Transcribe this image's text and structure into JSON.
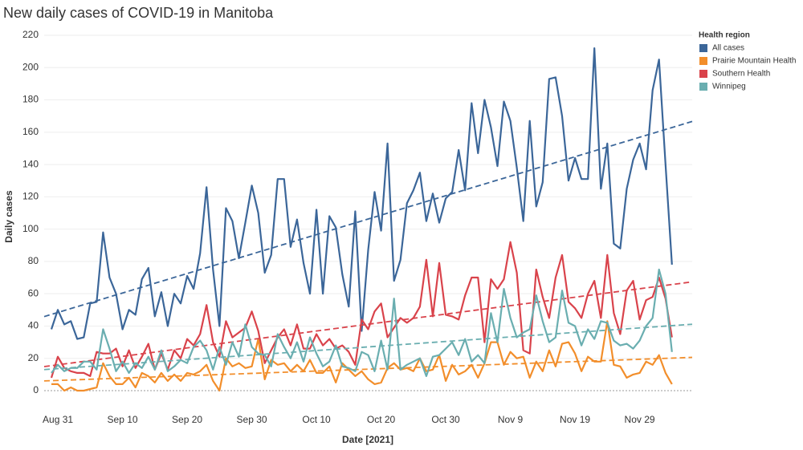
{
  "chart_data": {
    "type": "line",
    "title": "New daily cases of COVID-19 in Manitoba",
    "x_label": "Date [2021]",
    "y_label": "Daily cases",
    "legend_title": "Health region",
    "legend": "right",
    "grid": true,
    "trend_lines": true,
    "categories": [
      null,
      "Aug 31",
      null,
      null,
      null,
      null,
      null,
      null,
      null,
      null,
      null,
      "Sep 10",
      null,
      null,
      null,
      null,
      null,
      null,
      null,
      null,
      null,
      "Sep 20",
      null,
      null,
      null,
      null,
      null,
      null,
      null,
      null,
      null,
      "Sep 30",
      null,
      null,
      null,
      null,
      null,
      null,
      null,
      null,
      null,
      "Oct 10",
      null,
      null,
      null,
      null,
      null,
      null,
      null,
      null,
      null,
      "Oct 20",
      null,
      null,
      null,
      null,
      null,
      null,
      null,
      null,
      null,
      "Oct 30",
      null,
      null,
      null,
      null,
      null,
      null,
      null,
      null,
      null,
      "Nov 9",
      null,
      null,
      null,
      null,
      null,
      null,
      null,
      null,
      null,
      "Nov 19",
      null,
      null,
      null,
      null,
      null,
      null,
      null,
      null,
      null,
      "Nov 29",
      null,
      null,
      null,
      null,
      null
    ],
    "ylim": [
      0,
      220
    ],
    "yticks": [
      0,
      20,
      40,
      60,
      80,
      100,
      120,
      140,
      160,
      180,
      200,
      220
    ],
    "series": [
      {
        "name": "All cases",
        "color": "#3b6699",
        "values": [
          38,
          50,
          41,
          43,
          32,
          33,
          54,
          55,
          98,
          70,
          60,
          38,
          50,
          47,
          69,
          76,
          46,
          61,
          40,
          60,
          54,
          71,
          63,
          85,
          126,
          75,
          40,
          113,
          105,
          82,
          104,
          127,
          110,
          73,
          84,
          131,
          131,
          89,
          106,
          79,
          60,
          112,
          60,
          108,
          101,
          72,
          52,
          111,
          37,
          87,
          123,
          99,
          153,
          68,
          81,
          116,
          124,
          135,
          105,
          122,
          104,
          119,
          123,
          149,
          124,
          178,
          147,
          180,
          163,
          139,
          179,
          167,
          138,
          105,
          167,
          114,
          129,
          193,
          194,
          170,
          130,
          144,
          131,
          131,
          212,
          125,
          153,
          91,
          88,
          125,
          143,
          153,
          137,
          186,
          205,
          140,
          78
        ]
      },
      {
        "name": "Prairie Mountain Health",
        "color": "#f28e2b",
        "values": [
          4,
          4,
          0,
          2,
          0,
          0,
          1,
          2,
          17,
          9,
          4,
          4,
          8,
          2,
          11,
          9,
          5,
          11,
          6,
          10,
          6,
          11,
          10,
          12,
          16,
          6,
          0,
          20,
          15,
          17,
          14,
          15,
          32,
          7,
          19,
          16,
          17,
          12,
          16,
          12,
          19,
          11,
          11,
          15,
          5,
          17,
          13,
          9,
          12,
          7,
          4,
          5,
          14,
          17,
          13,
          14,
          12,
          20,
          12,
          13,
          22,
          6,
          16,
          10,
          12,
          16,
          8,
          17,
          30,
          30,
          16,
          24,
          20,
          21,
          8,
          18,
          12,
          25,
          15,
          29,
          30,
          23,
          12,
          21,
          18,
          18,
          43,
          16,
          15,
          8,
          10,
          11,
          18,
          16,
          22,
          11,
          4
        ]
      },
      {
        "name": "Southern Health",
        "color": "#d9434b",
        "values": [
          8,
          21,
          14,
          12,
          11,
          11,
          9,
          24,
          23,
          23,
          26,
          15,
          25,
          14,
          21,
          29,
          13,
          23,
          13,
          25,
          20,
          32,
          28,
          35,
          53,
          30,
          21,
          43,
          33,
          36,
          39,
          49,
          37,
          17,
          25,
          33,
          38,
          28,
          41,
          26,
          26,
          35,
          28,
          32,
          26,
          28,
          24,
          16,
          44,
          38,
          49,
          54,
          33,
          39,
          45,
          42,
          45,
          52,
          81,
          46,
          79,
          47,
          46,
          44,
          59,
          70,
          70,
          30,
          69,
          63,
          69,
          92,
          73,
          25,
          23,
          75,
          58,
          45,
          70,
          84,
          55,
          51,
          45,
          60,
          68,
          45,
          84,
          48,
          35,
          62,
          68,
          44,
          56,
          58,
          70,
          57,
          33
        ]
      },
      {
        "name": "Winnipeg",
        "color": "#6aaeb0",
        "values": [
          11,
          16,
          12,
          14,
          14,
          18,
          18,
          13,
          38,
          26,
          12,
          18,
          11,
          17,
          14,
          21,
          13,
          25,
          12,
          15,
          19,
          17,
          27,
          31,
          25,
          13,
          27,
          16,
          30,
          21,
          41,
          27,
          23,
          22,
          15,
          35,
          27,
          20,
          30,
          18,
          33,
          23,
          15,
          18,
          28,
          15,
          14,
          12,
          24,
          22,
          12,
          31,
          13,
          57,
          13,
          16,
          18,
          20,
          9,
          21,
          22,
          26,
          30,
          22,
          32,
          18,
          22,
          17,
          48,
          30,
          63,
          45,
          33,
          36,
          38,
          59,
          43,
          30,
          33,
          62,
          42,
          40,
          28,
          38,
          32,
          43,
          42,
          31,
          28,
          29,
          26,
          31,
          40,
          45,
          75,
          60,
          24
        ]
      }
    ]
  }
}
